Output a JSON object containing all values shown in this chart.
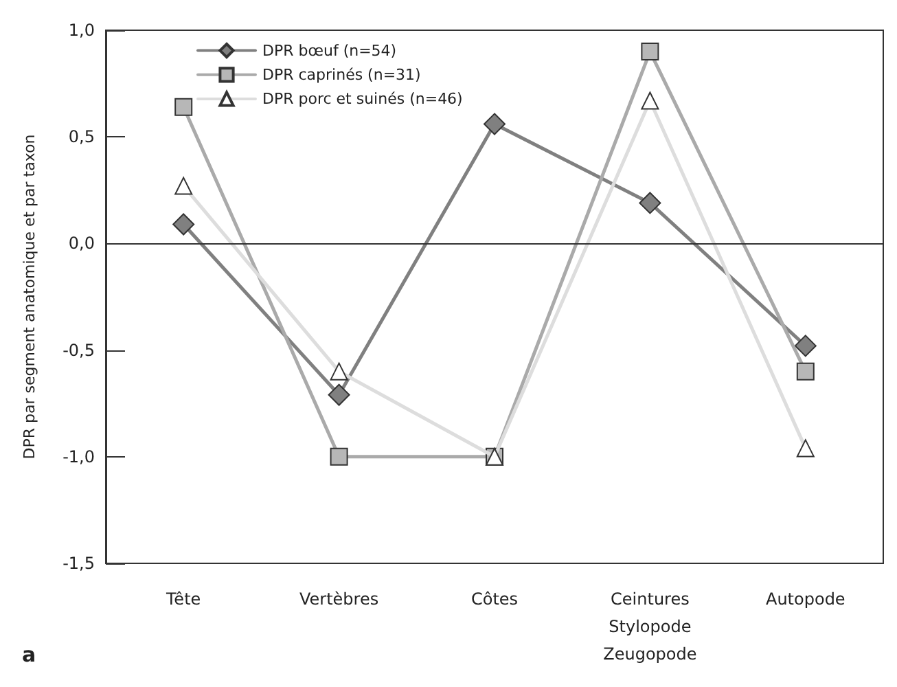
{
  "chart_data": {
    "type": "line",
    "ylabel": "DPR par segment anatomique et par taxon",
    "annotations": [
      "a"
    ],
    "categories": [
      "Tête",
      "Vertèbres",
      "Côtes",
      "Ceintures\nStylopode\nZeugopode",
      "Autopode"
    ],
    "series": [
      {
        "name": "DPR bœuf (n=54)",
        "color": "#808080",
        "marker": "diamond",
        "values": [
          0.09,
          -0.71,
          0.56,
          0.19,
          -0.48
        ]
      },
      {
        "name": "DPR caprinés (n=31)",
        "color": "#aaaaaa",
        "marker": "square",
        "values": [
          0.64,
          -1.0,
          -1.0,
          0.9,
          -0.6
        ]
      },
      {
        "name": "DPR porc et suinés (n=46)",
        "color": "#dddddd",
        "marker": "triangle",
        "values": [
          0.27,
          -0.6,
          -1.0,
          0.67,
          -0.96
        ]
      }
    ],
    "ylim": [
      -1.5,
      1.0
    ],
    "yticks": [
      {
        "value": -1.5,
        "label": "-1,5"
      },
      {
        "value": -1.0,
        "label": "-1,0"
      },
      {
        "value": -0.5,
        "label": "-0,5"
      },
      {
        "value": 0,
        "label": "0,0"
      },
      {
        "value": 0.5,
        "label": "0,5"
      },
      {
        "value": 1.0,
        "label": "1,0"
      }
    ],
    "ref_lines": [
      {
        "axis": "y",
        "value": 0
      }
    ],
    "grid": false,
    "legend": "top left",
    "line_style": "solid"
  }
}
